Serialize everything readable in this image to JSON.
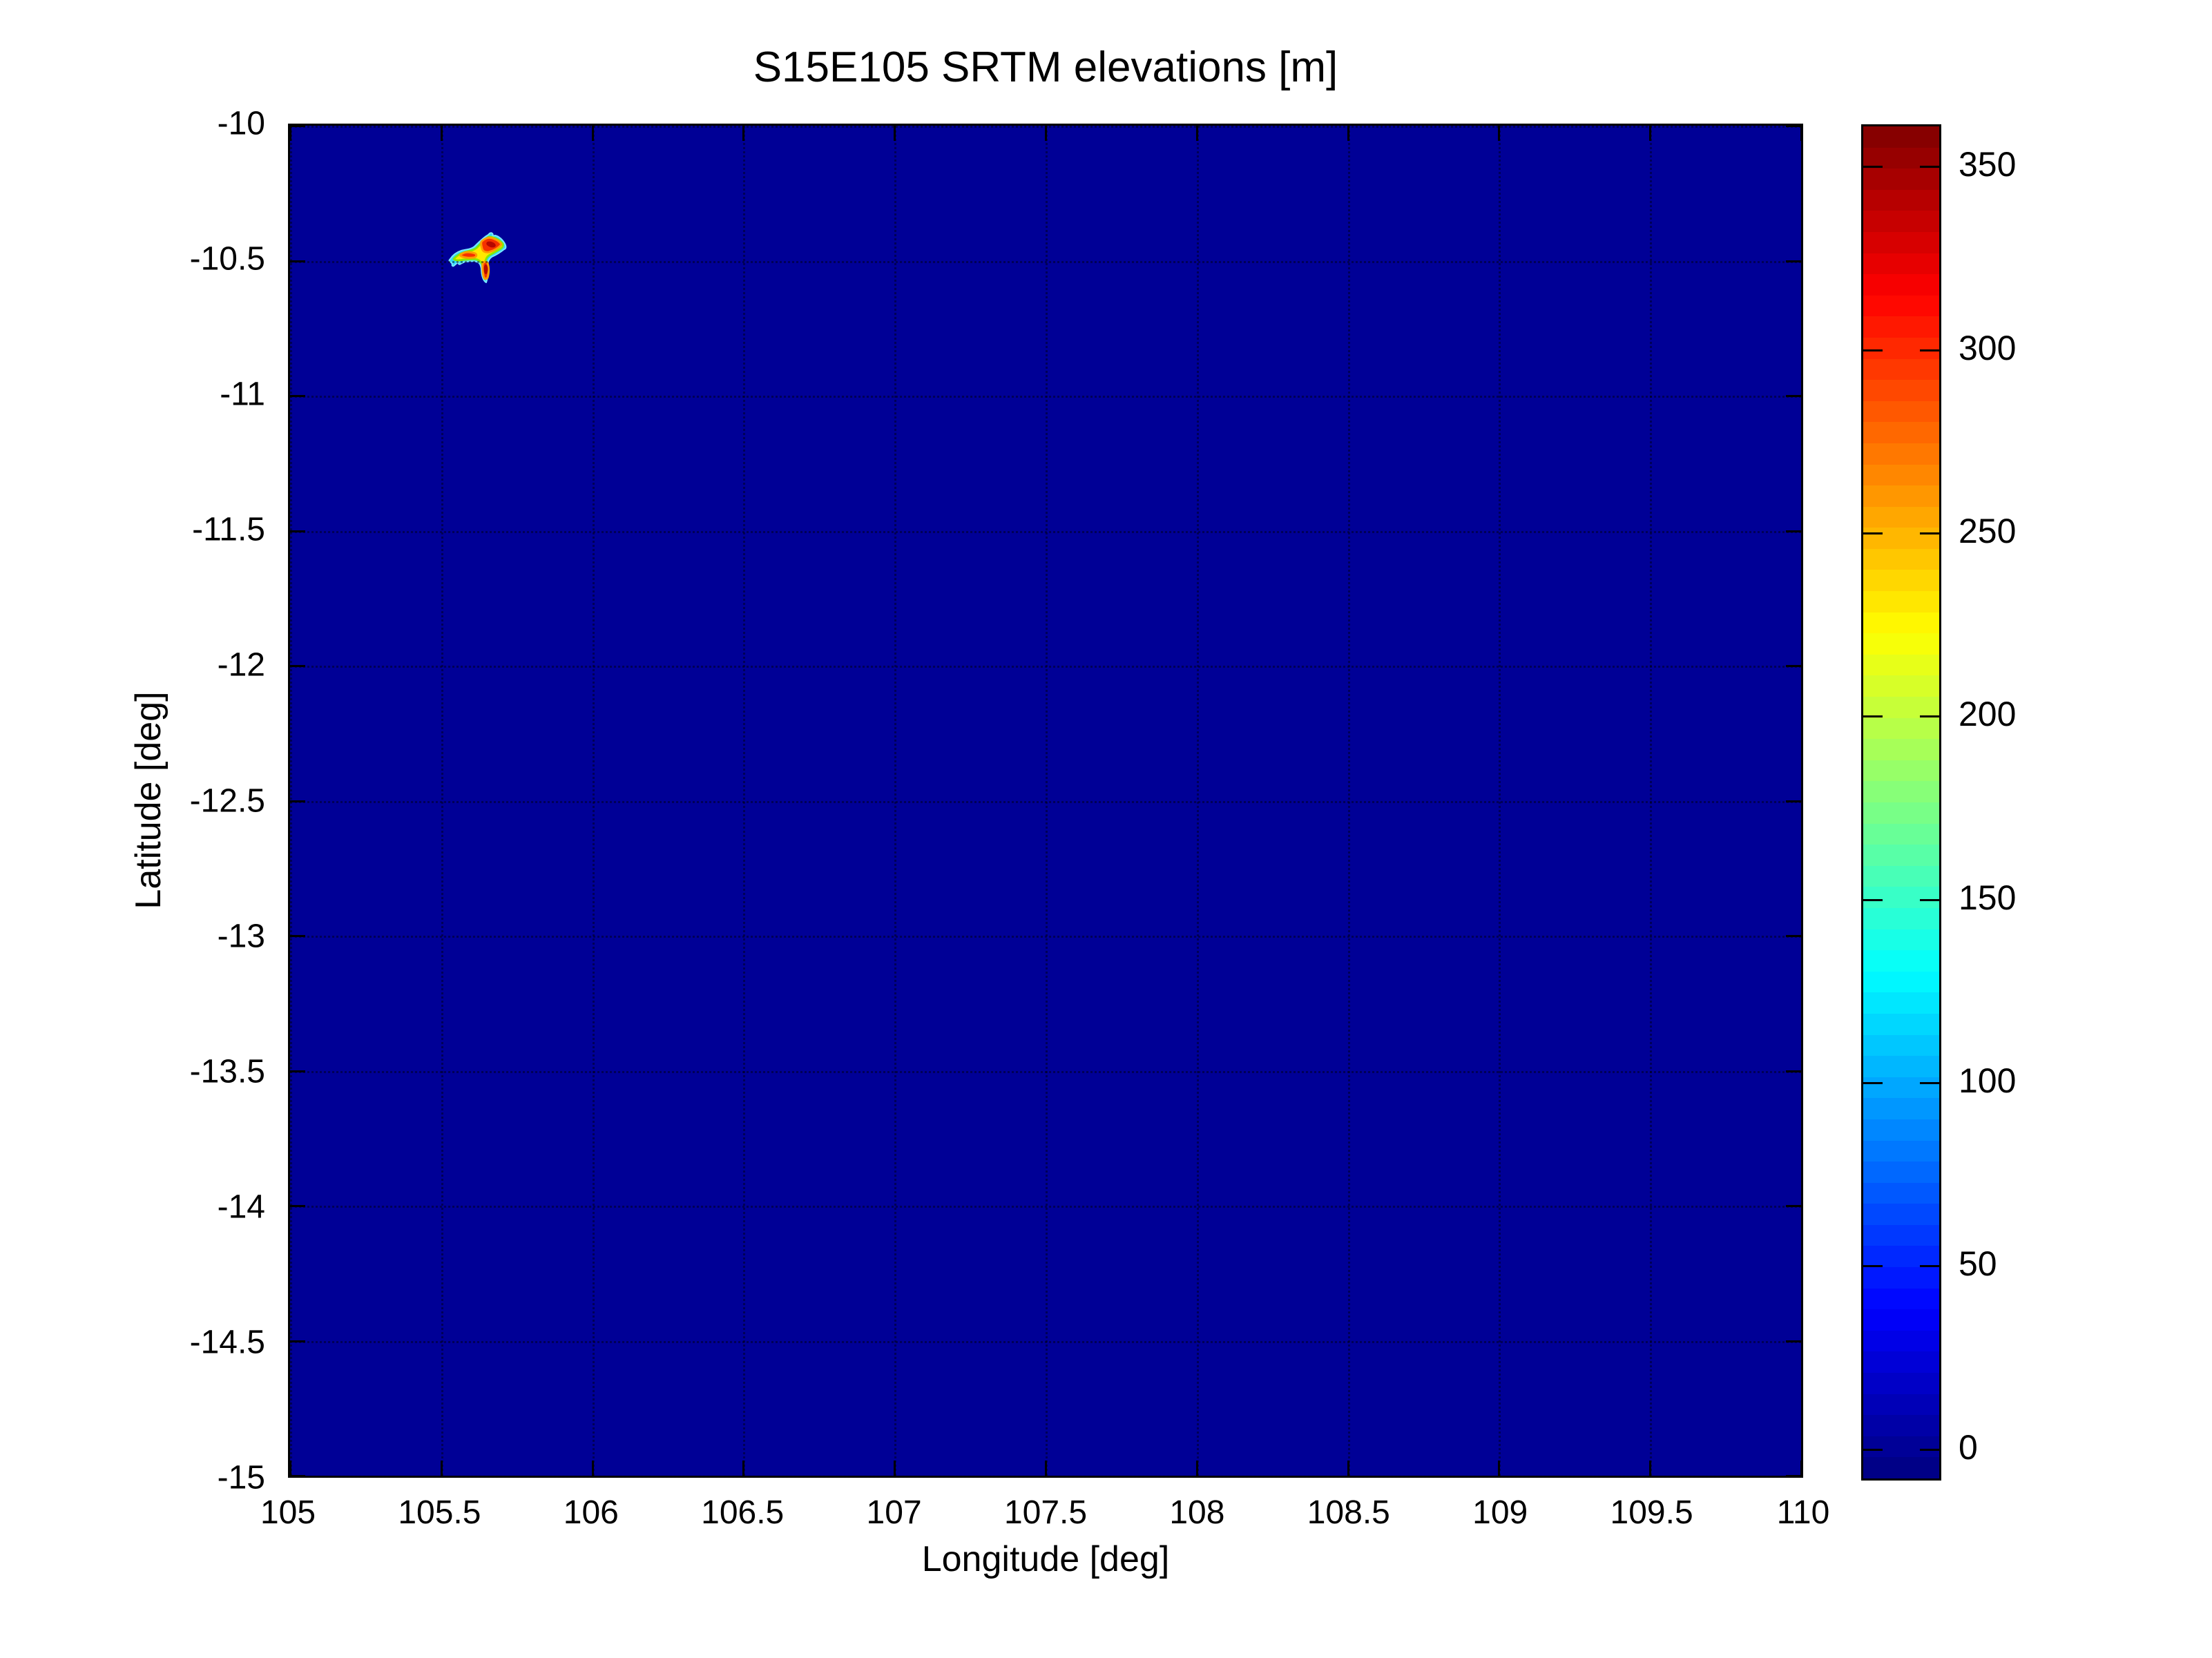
{
  "chart_data": {
    "type": "heatmap",
    "title": "S15E105 SRTM elevations [m]",
    "xlabel": "Longitude [deg]",
    "ylabel": "Latitude [deg]",
    "xlim": [
      105,
      110
    ],
    "ylim": [
      -15,
      -10
    ],
    "x_ticks": [
      "105",
      "105.5",
      "106",
      "106.5",
      "107",
      "107.5",
      "108",
      "108.5",
      "109",
      "109.5",
      "110"
    ],
    "y_ticks": [
      "-10",
      "-10.5",
      "-11",
      "-11.5",
      "-12",
      "-12.5",
      "-13",
      "-13.5",
      "-14",
      "-14.5",
      "-15"
    ],
    "grid": "dotted",
    "legend_position": "colorbar-right",
    "colormap": "jet",
    "colormap_levels": 64,
    "color_limits": [
      -8,
      361
    ],
    "colorbar_ticks": [
      "0",
      "50",
      "100",
      "150",
      "200",
      "250",
      "300",
      "350"
    ],
    "ocean_value": 0,
    "island": {
      "description": "single small island of elevated terrain in an otherwise uniform 0 m ocean field",
      "lon_range": [
        105.53,
        105.72
      ],
      "lat_range": [
        -10.58,
        -10.4
      ],
      "colors": {
        "edge_fill": "#2fd8ff",
        "edge_stroke": "#7ae9ff",
        "mid_fill": "#ffe800",
        "mid_stroke": "#8ae800",
        "core_fill": "#f53000",
        "core_stroke": "#ff9c00",
        "peak_fill": "#b40800"
      }
    }
  }
}
